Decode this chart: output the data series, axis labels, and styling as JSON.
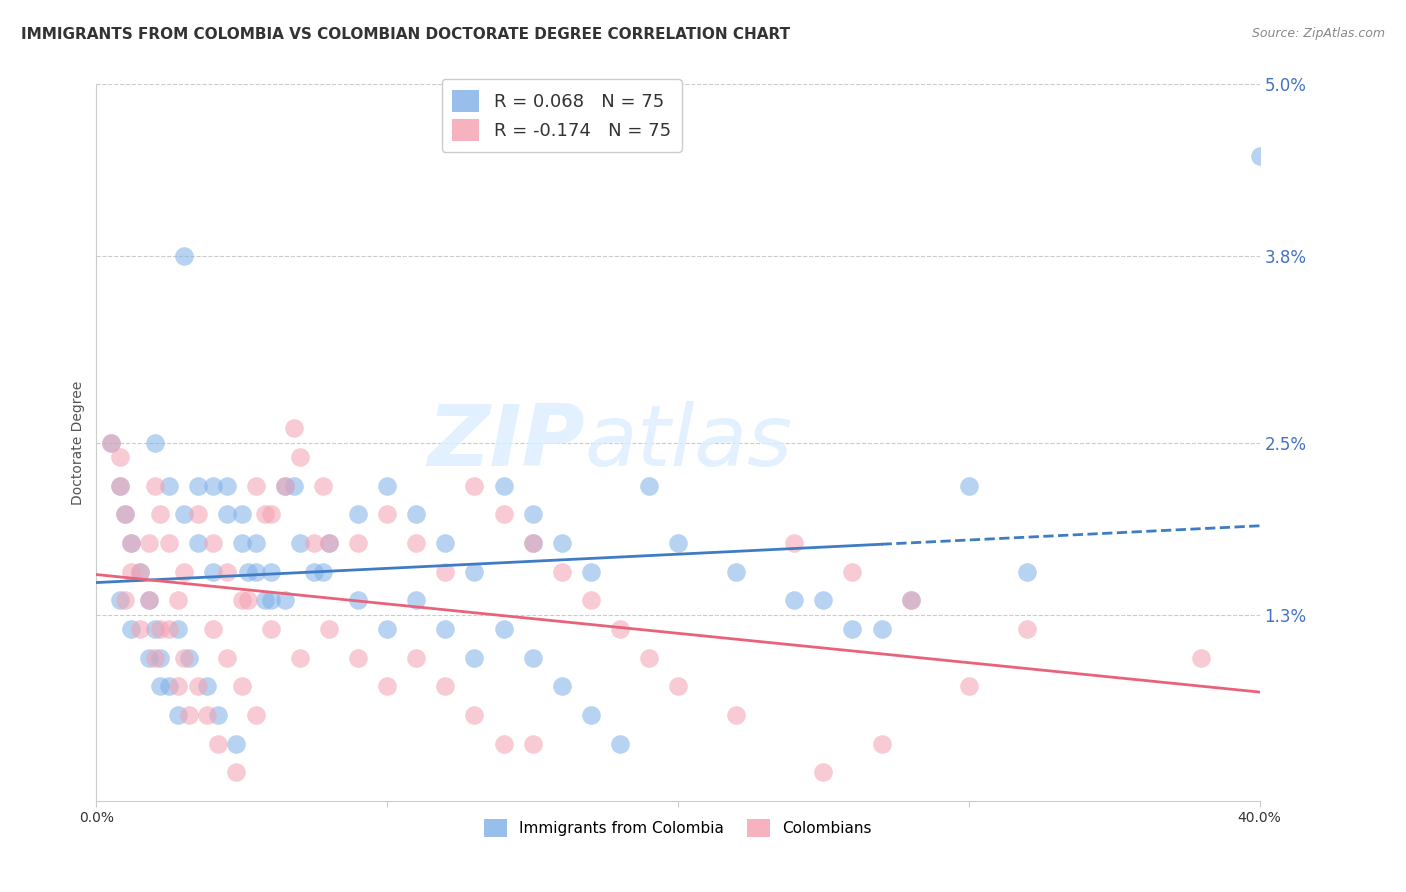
{
  "title": "IMMIGRANTS FROM COLOMBIA VS COLOMBIAN DOCTORATE DEGREE CORRELATION CHART",
  "source": "Source: ZipAtlas.com",
  "ylabel": "Doctorate Degree",
  "yticks": [
    0.0,
    0.013,
    0.025,
    0.038,
    0.05
  ],
  "ytick_labels": [
    "",
    "1.3%",
    "2.5%",
    "3.8%",
    "5.0%"
  ],
  "xlim": [
    0.0,
    0.4
  ],
  "ylim": [
    0.0,
    0.05
  ],
  "legend_r1": "R = 0.068",
  "legend_n1": "N = 75",
  "legend_r2": "R = -0.174",
  "legend_n2": "N = 75",
  "series1_color": "#7EB0E8",
  "series2_color": "#F4A0B0",
  "trend1_color": "#3E7CC4",
  "trend2_color": "#E8637A",
  "watermark_zip": "ZIP",
  "watermark_atlas": "atlas",
  "title_fontsize": 11,
  "axis_label_fontsize": 10,
  "tick_fontsize": 10,
  "background_color": "#FFFFFF",
  "scatter1_x": [
    0.005,
    0.008,
    0.01,
    0.012,
    0.015,
    0.018,
    0.02,
    0.022,
    0.025,
    0.028,
    0.03,
    0.035,
    0.04,
    0.045,
    0.05,
    0.055,
    0.06,
    0.065,
    0.07,
    0.075,
    0.08,
    0.09,
    0.1,
    0.11,
    0.12,
    0.13,
    0.14,
    0.15,
    0.16,
    0.17,
    0.09,
    0.1,
    0.11,
    0.12,
    0.13,
    0.14,
    0.15,
    0.16,
    0.17,
    0.18,
    0.02,
    0.025,
    0.03,
    0.035,
    0.04,
    0.045,
    0.05,
    0.055,
    0.06,
    0.065,
    0.008,
    0.012,
    0.018,
    0.022,
    0.028,
    0.032,
    0.038,
    0.042,
    0.048,
    0.052,
    0.19,
    0.2,
    0.22,
    0.24,
    0.26,
    0.28,
    0.3,
    0.32,
    0.25,
    0.27,
    0.058,
    0.068,
    0.078,
    0.15,
    0.4
  ],
  "scatter1_y": [
    0.025,
    0.022,
    0.02,
    0.018,
    0.016,
    0.014,
    0.012,
    0.01,
    0.008,
    0.006,
    0.038,
    0.022,
    0.022,
    0.02,
    0.018,
    0.016,
    0.014,
    0.022,
    0.018,
    0.016,
    0.018,
    0.02,
    0.022,
    0.02,
    0.018,
    0.016,
    0.022,
    0.02,
    0.018,
    0.016,
    0.014,
    0.012,
    0.014,
    0.012,
    0.01,
    0.012,
    0.01,
    0.008,
    0.006,
    0.004,
    0.025,
    0.022,
    0.02,
    0.018,
    0.016,
    0.022,
    0.02,
    0.018,
    0.016,
    0.014,
    0.014,
    0.012,
    0.01,
    0.008,
    0.012,
    0.01,
    0.008,
    0.006,
    0.004,
    0.016,
    0.022,
    0.018,
    0.016,
    0.014,
    0.012,
    0.014,
    0.022,
    0.016,
    0.014,
    0.012,
    0.014,
    0.022,
    0.016,
    0.018,
    0.045
  ],
  "scatter2_x": [
    0.005,
    0.008,
    0.01,
    0.012,
    0.015,
    0.018,
    0.02,
    0.022,
    0.025,
    0.028,
    0.03,
    0.035,
    0.04,
    0.045,
    0.05,
    0.055,
    0.06,
    0.065,
    0.07,
    0.075,
    0.08,
    0.09,
    0.1,
    0.11,
    0.12,
    0.13,
    0.14,
    0.15,
    0.16,
    0.17,
    0.01,
    0.015,
    0.02,
    0.025,
    0.03,
    0.035,
    0.04,
    0.045,
    0.05,
    0.055,
    0.06,
    0.07,
    0.08,
    0.09,
    0.1,
    0.11,
    0.12,
    0.13,
    0.14,
    0.15,
    0.008,
    0.012,
    0.018,
    0.022,
    0.028,
    0.032,
    0.038,
    0.042,
    0.048,
    0.052,
    0.18,
    0.19,
    0.2,
    0.22,
    0.24,
    0.26,
    0.28,
    0.3,
    0.25,
    0.27,
    0.058,
    0.068,
    0.078,
    0.32,
    0.38
  ],
  "scatter2_y": [
    0.025,
    0.022,
    0.02,
    0.018,
    0.016,
    0.014,
    0.022,
    0.02,
    0.018,
    0.014,
    0.016,
    0.02,
    0.018,
    0.016,
    0.014,
    0.022,
    0.02,
    0.022,
    0.024,
    0.018,
    0.018,
    0.018,
    0.02,
    0.018,
    0.016,
    0.022,
    0.02,
    0.018,
    0.016,
    0.014,
    0.014,
    0.012,
    0.01,
    0.012,
    0.01,
    0.008,
    0.012,
    0.01,
    0.008,
    0.006,
    0.012,
    0.01,
    0.012,
    0.01,
    0.008,
    0.01,
    0.008,
    0.006,
    0.004,
    0.004,
    0.024,
    0.016,
    0.018,
    0.012,
    0.008,
    0.006,
    0.006,
    0.004,
    0.002,
    0.014,
    0.012,
    0.01,
    0.008,
    0.006,
    0.018,
    0.016,
    0.014,
    0.008,
    0.002,
    0.004,
    0.02,
    0.026,
    0.022,
    0.012,
    0.01
  ]
}
